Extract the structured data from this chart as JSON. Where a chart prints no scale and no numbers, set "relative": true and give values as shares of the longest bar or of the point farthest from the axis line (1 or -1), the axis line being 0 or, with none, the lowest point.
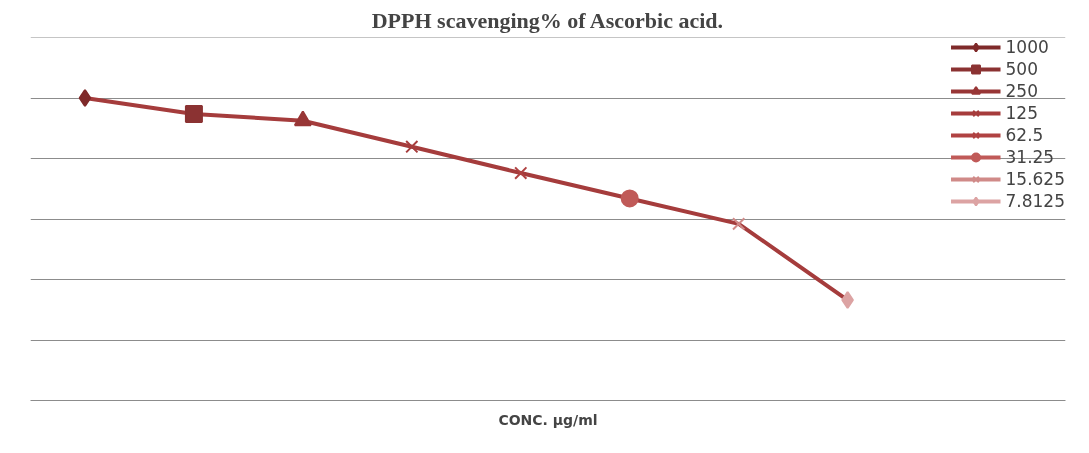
{
  "chart_data": {
    "type": "line",
    "title": "DPPH scavenging% of Ascorbic acid.",
    "xlabel": "CONC. μg/ml",
    "relative": true,
    "grid": "y",
    "legend": "right",
    "categories": [
      null,
      null,
      null,
      null,
      null,
      null,
      null,
      null
    ],
    "series": [
      {
        "color": "#a53c3c",
        "values": [
          1,
          0.947,
          0.925,
          0.839,
          0.752,
          0.668,
          0.584,
          0.332
        ]
      },
      {
        "name": "1000",
        "color": "#7f2a2a",
        "values": [
          1,
          null,
          null,
          null,
          null,
          null,
          null,
          null
        ],
        "marker": "diamond"
      },
      {
        "name": "500",
        "color": "#8b3232",
        "values": [
          null,
          0.947,
          null,
          null,
          null,
          null,
          null,
          null
        ],
        "marker": "square"
      },
      {
        "name": "250",
        "color": "#983636",
        "values": [
          null,
          null,
          0.925,
          null,
          null,
          null,
          null,
          null
        ],
        "marker": "triangle"
      },
      {
        "name": "125",
        "color": "#a63c3c",
        "values": [
          null,
          null,
          null,
          0.839,
          null,
          null,
          null,
          null
        ],
        "marker": "cross"
      },
      {
        "name": "62.5",
        "color": "#b04242",
        "values": [
          null,
          null,
          null,
          null,
          0.752,
          null,
          null,
          null
        ],
        "marker": "cross"
      },
      {
        "name": "31.25",
        "color": "#c05a58",
        "values": [
          null,
          null,
          null,
          null,
          null,
          0.668,
          null,
          null
        ],
        "marker": "circle"
      },
      {
        "name": "15.625",
        "color": "#d08a88",
        "values": [
          null,
          null,
          null,
          null,
          null,
          null,
          0.584,
          null
        ],
        "marker": "cross"
      },
      {
        "name": "7.8125",
        "color": "#dca3a3",
        "values": [
          null,
          null,
          null,
          null,
          null,
          null,
          null,
          0.332
        ],
        "marker": "diamond"
      }
    ]
  }
}
